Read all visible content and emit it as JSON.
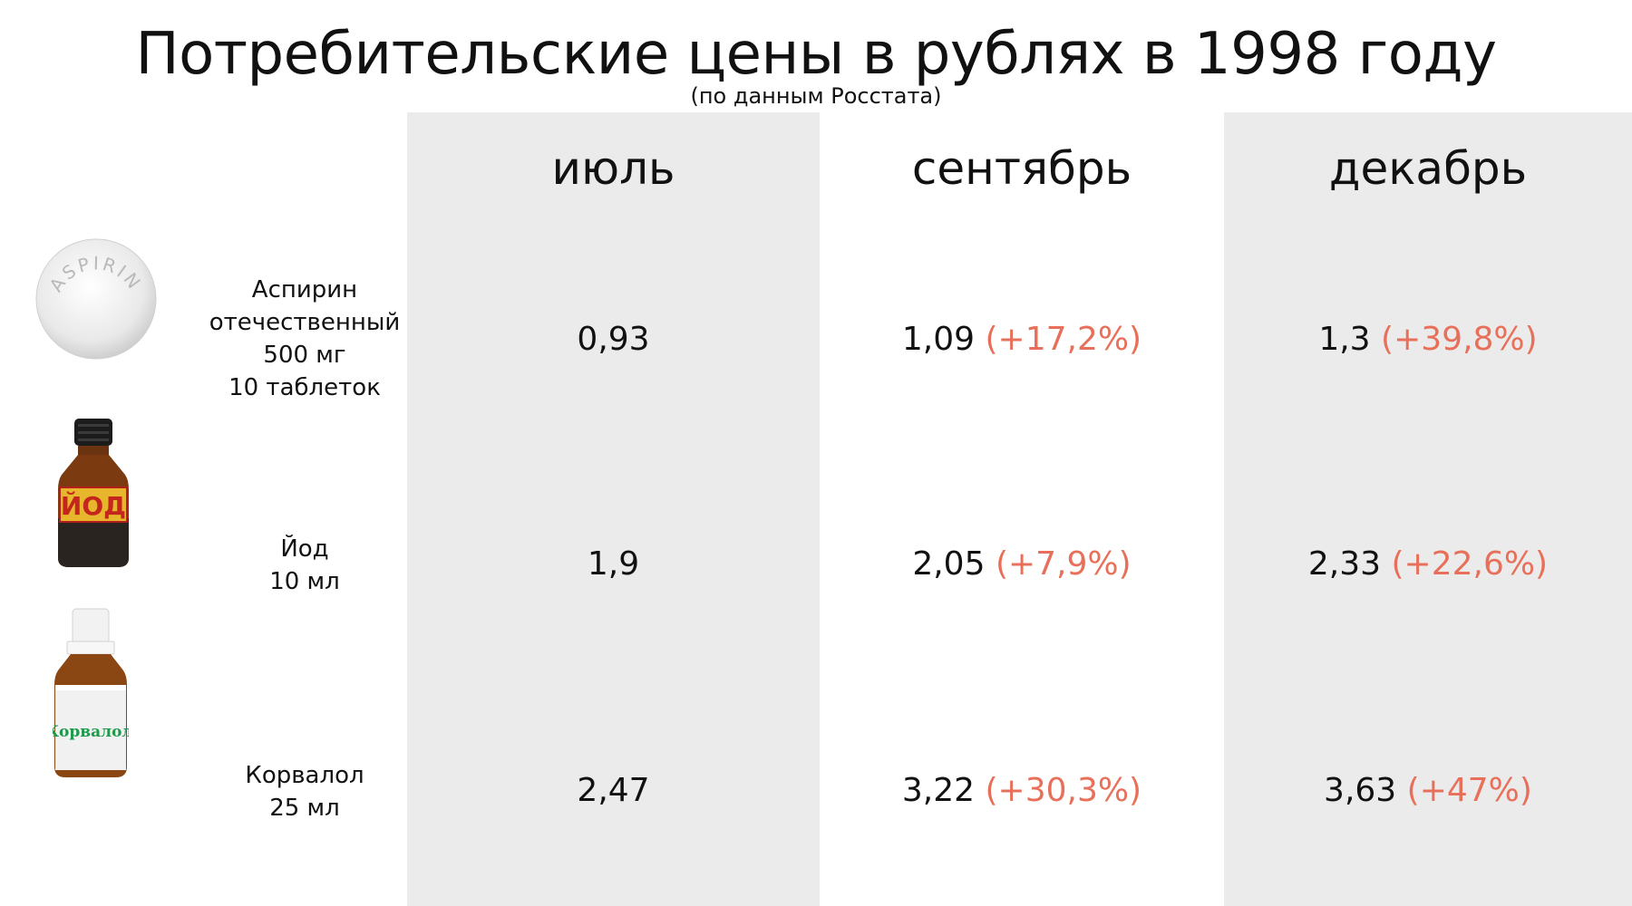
{
  "title": "Потребительские цены в рублях в 1998 году",
  "subtitle": "(по данным Росстата)",
  "columns": [
    "июль",
    "сентябрь",
    "декабрь"
  ],
  "items": [
    {
      "label_lines": [
        "Аспирин",
        "отечественный",
        "500 мг",
        "10 таблеток"
      ],
      "image": "aspirin-tablet",
      "image_text": "ASPIRIN",
      "cells": [
        {
          "value": "0,93",
          "change": ""
        },
        {
          "value": "1,09",
          "change": "(+17,2%)"
        },
        {
          "value": "1,3",
          "change": "(+39,8%)"
        }
      ]
    },
    {
      "label_lines": [
        "Йод",
        "10 мл"
      ],
      "image": "iodine-bottle",
      "image_text": "ЙОД",
      "cells": [
        {
          "value": "1,9",
          "change": ""
        },
        {
          "value": "2,05",
          "change": "(+7,9%)"
        },
        {
          "value": "2,33",
          "change": "(+22,6%)"
        }
      ]
    },
    {
      "label_lines": [
        "Корвалол",
        "25 мл"
      ],
      "image": "corvalol-bottle",
      "image_text": "Корвалол",
      "cells": [
        {
          "value": "2,47",
          "change": ""
        },
        {
          "value": "3,22",
          "change": "(+30,3%)"
        },
        {
          "value": "3,63",
          "change": "(+47%)"
        }
      ]
    }
  ],
  "colors": {
    "change": "#e8705a",
    "column_shade": "#ebebeb",
    "text": "#111111"
  },
  "chart_data": {
    "type": "table",
    "title": "Потребительские цены в рублях в 1998 году",
    "subtitle": "(по данным Росстата)",
    "categories": [
      "июль",
      "сентябрь",
      "декабрь"
    ],
    "series": [
      {
        "name": "Аспирин отечественный 500 мг 10 таблеток",
        "values": [
          0.93,
          1.09,
          1.3
        ],
        "changes": [
          "",
          "+17,2%",
          "+39,8%"
        ]
      },
      {
        "name": "Йод 10 мл",
        "values": [
          1.9,
          2.05,
          2.33
        ],
        "changes": [
          "",
          "+7,9%",
          "+22,6%"
        ]
      },
      {
        "name": "Корвалол 25 мл",
        "values": [
          2.47,
          3.22,
          3.63
        ],
        "changes": [
          "",
          "+30,3%",
          "+47%"
        ]
      }
    ]
  }
}
